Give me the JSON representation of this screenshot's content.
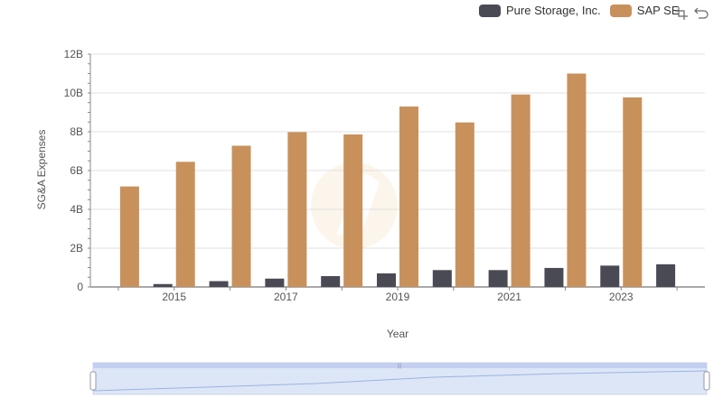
{
  "chart_data": {
    "type": "bar",
    "xlabel": "Year",
    "ylabel": "SG&A Expenses",
    "ylim": [
      0,
      12000000000
    ],
    "yticks": [
      "0",
      "2B",
      "4B",
      "6B",
      "8B",
      "10B",
      "12B"
    ],
    "categories": [
      "2014",
      "2015",
      "2016",
      "2017",
      "2018",
      "2019",
      "2020",
      "2021",
      "2022",
      "2023",
      "2024"
    ],
    "xtick_labels_shown": [
      "2015",
      "2017",
      "2019",
      "2021",
      "2023"
    ],
    "series": [
      {
        "name": "Pure Storage, Inc.",
        "color": "#4a4a55",
        "values": [
          20000000,
          150000000,
          300000000,
          430000000,
          560000000,
          700000000,
          870000000,
          870000000,
          980000000,
          1100000000,
          1170000000
        ]
      },
      {
        "name": "SAP SE",
        "color": "#c8915c",
        "values": [
          5180000000,
          6450000000,
          7280000000,
          7980000000,
          7860000000,
          9300000000,
          8480000000,
          9920000000,
          11000000000,
          9770000000,
          null
        ]
      }
    ],
    "legend_position": "top-right",
    "grid": true
  },
  "legend": {
    "items": [
      {
        "label": "Pure Storage, Inc.",
        "color": "#4a4a55"
      },
      {
        "label": "SAP SE",
        "color": "#c8915c"
      }
    ]
  },
  "toolbox": {
    "icons": [
      "zoom-icon",
      "restore-icon"
    ]
  }
}
